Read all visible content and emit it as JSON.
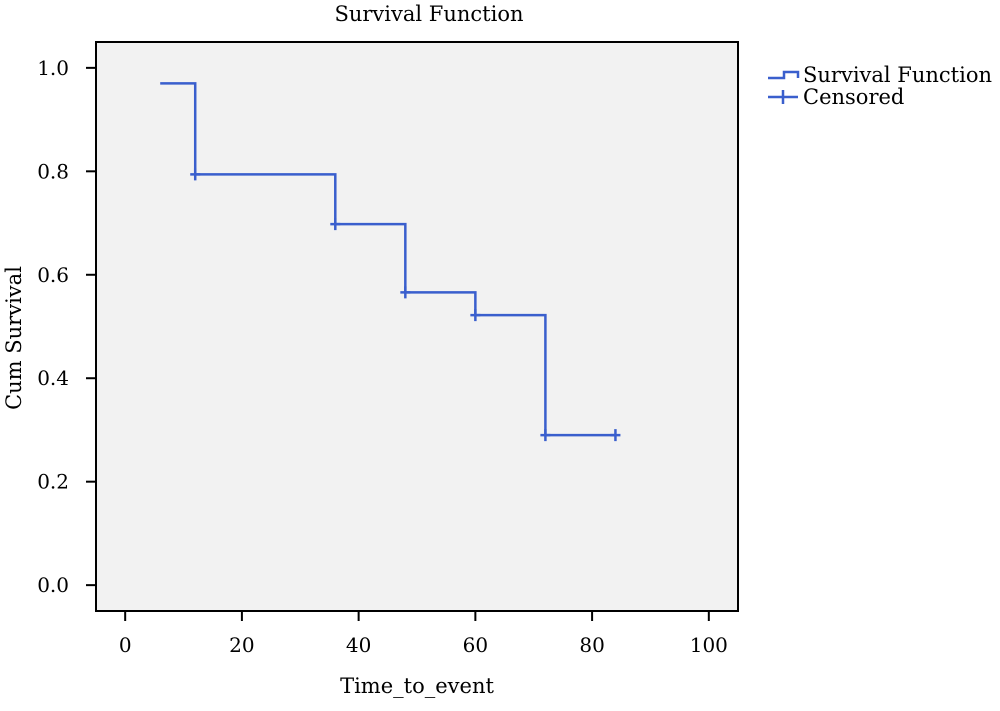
{
  "chart_data": {
    "type": "line",
    "title": "Survival Function",
    "xlabel": "Time_to_event",
    "ylabel": "Cum Survival",
    "xlim": [
      -5,
      105
    ],
    "ylim": [
      -0.05,
      1.05
    ],
    "x_ticks": [
      0,
      20,
      40,
      60,
      80,
      100
    ],
    "x_tick_labels": [
      "0",
      "20",
      "40",
      "60",
      "80",
      "100"
    ],
    "y_ticks": [
      0.0,
      0.2,
      0.4,
      0.6,
      0.8,
      1.0
    ],
    "y_tick_labels": [
      "0.0",
      "0.2",
      "0.4",
      "0.6",
      "0.8",
      "1.0"
    ],
    "grid": false,
    "legend_position": "top-right, outside plot",
    "colors": {
      "line": "#3a5fcd",
      "plot_background": "#f2f2f2"
    },
    "series": [
      {
        "name": "Survival Function",
        "style": "step",
        "points": [
          {
            "x": 6,
            "y": 0.97
          },
          {
            "x": 12,
            "y": 0.794
          },
          {
            "x": 36,
            "y": 0.698
          },
          {
            "x": 48,
            "y": 0.566
          },
          {
            "x": 60,
            "y": 0.522
          },
          {
            "x": 72,
            "y": 0.29
          },
          {
            "x": 84,
            "y": 0.29
          }
        ]
      },
      {
        "name": "Censored",
        "style": "marker",
        "points": [
          {
            "x": 12,
            "y": 0.794
          },
          {
            "x": 36,
            "y": 0.698
          },
          {
            "x": 48,
            "y": 0.566
          },
          {
            "x": 60,
            "y": 0.522
          },
          {
            "x": 72,
            "y": 0.29
          },
          {
            "x": 84,
            "y": 0.29
          }
        ]
      }
    ]
  }
}
